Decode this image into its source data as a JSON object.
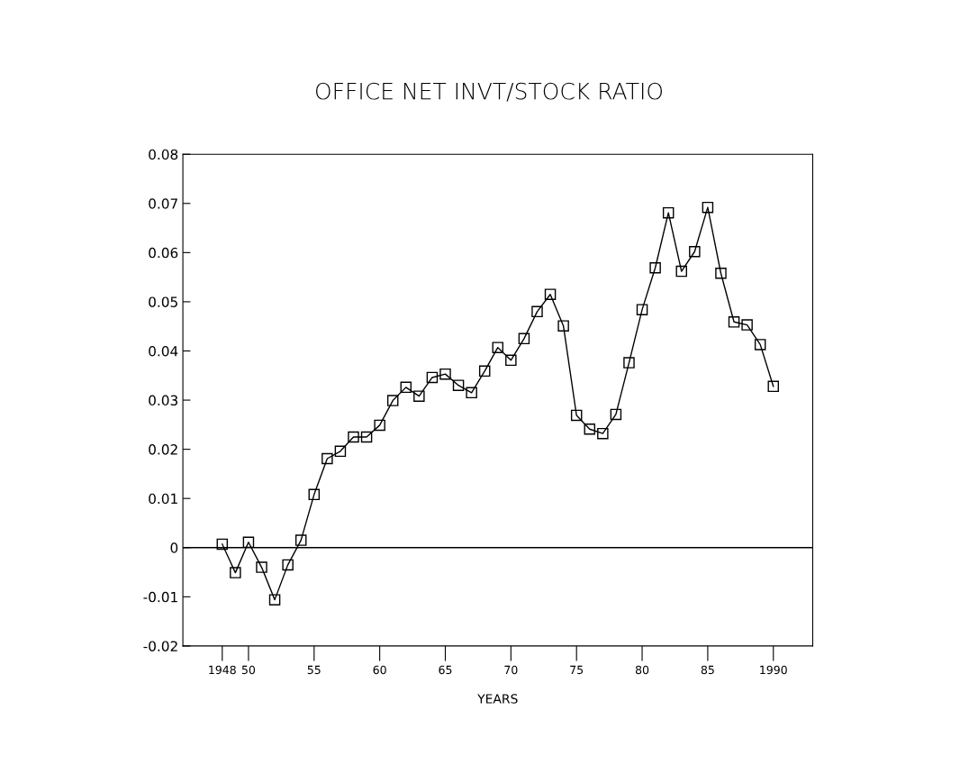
{
  "chart_data": {
    "type": "line",
    "title": "OFFICE NET INVT/STOCK RATIO",
    "xlabel": "YEARS",
    "x": [
      1948,
      1949,
      1950,
      1951,
      1952,
      1953,
      1954,
      1955,
      1956,
      1957,
      1958,
      1959,
      1960,
      1961,
      1962,
      1963,
      1964,
      1965,
      1966,
      1967,
      1968,
      1969,
      1970,
      1971,
      1972,
      1973,
      1974,
      1975,
      1976,
      1977,
      1978,
      1979,
      1980,
      1981,
      1982,
      1983,
      1984,
      1985,
      1986,
      1987,
      1988,
      1989,
      1990
    ],
    "series": [
      {
        "color": "#000000",
        "values": [
          0.0007,
          -0.0051,
          0.0011,
          -0.004,
          -0.0106,
          -0.0035,
          0.0015,
          0.0108,
          0.0181,
          0.0196,
          0.0225,
          0.0225,
          0.0249,
          0.0299,
          0.0326,
          0.0308,
          0.0346,
          0.0353,
          0.033,
          0.0315,
          0.0359,
          0.0407,
          0.0381,
          0.0425,
          0.048,
          0.0515,
          0.0451,
          0.0269,
          0.0241,
          0.0232,
          0.0271,
          0.0376,
          0.0484,
          0.0569,
          0.0681,
          0.0562,
          0.0602,
          0.0692,
          0.0558,
          0.0459,
          0.0453,
          0.0413,
          0.0328
        ]
      }
    ],
    "xlim": [
      1945,
      1993
    ],
    "xticks": [
      {
        "value": 1948,
        "label": "1948"
      },
      {
        "value": 1950,
        "label": "50"
      },
      {
        "value": 1955,
        "label": "55"
      },
      {
        "value": 1960,
        "label": "60"
      },
      {
        "value": 1965,
        "label": "65"
      },
      {
        "value": 1970,
        "label": "70"
      },
      {
        "value": 1975,
        "label": "75"
      },
      {
        "value": 1980,
        "label": "80"
      },
      {
        "value": 1985,
        "label": "85"
      },
      {
        "value": 1990,
        "label": "1990"
      }
    ],
    "ylim": [
      -0.02,
      0.08
    ],
    "yticks": [
      -0.02,
      -0.01,
      0,
      0.01,
      0.02,
      0.03,
      0.04,
      0.05,
      0.06,
      0.07,
      0.08
    ],
    "ref_lines": [
      {
        "axis": "y",
        "value": 0,
        "color": "#000000"
      }
    ],
    "marker": "square",
    "line_style": "solid",
    "grid": false,
    "legend": false
  }
}
